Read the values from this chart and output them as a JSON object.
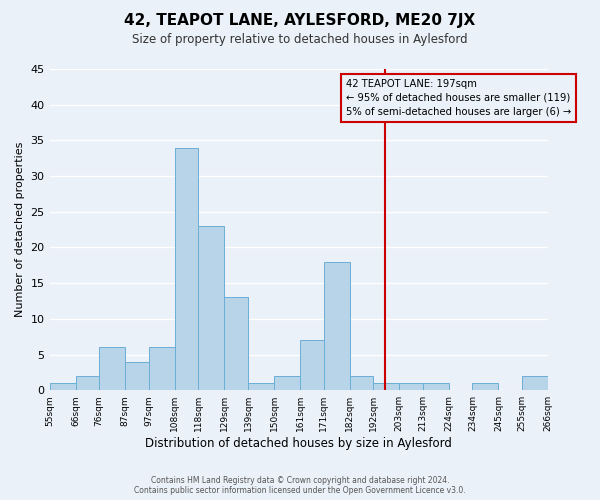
{
  "title": "42, TEAPOT LANE, AYLESFORD, ME20 7JX",
  "subtitle": "Size of property relative to detached houses in Aylesford",
  "xlabel": "Distribution of detached houses by size in Aylesford",
  "ylabel": "Number of detached properties",
  "footer_line1": "Contains HM Land Registry data © Crown copyright and database right 2024.",
  "footer_line2": "Contains public sector information licensed under the Open Government Licence v3.0.",
  "bin_labels": [
    "55sqm",
    "66sqm",
    "76sqm",
    "87sqm",
    "97sqm",
    "108sqm",
    "118sqm",
    "129sqm",
    "139sqm",
    "150sqm",
    "161sqm",
    "171sqm",
    "182sqm",
    "192sqm",
    "203sqm",
    "213sqm",
    "224sqm",
    "234sqm",
    "245sqm",
    "255sqm",
    "266sqm"
  ],
  "bin_edges": [
    55,
    66,
    76,
    87,
    97,
    108,
    118,
    129,
    139,
    150,
    161,
    171,
    182,
    192,
    203,
    213,
    224,
    234,
    245,
    255,
    266
  ],
  "bar_heights": [
    1,
    2,
    6,
    4,
    6,
    34,
    23,
    13,
    1,
    2,
    7,
    18,
    2,
    1,
    1,
    1,
    0,
    1,
    0,
    2
  ],
  "bar_color": "#b8d4e8",
  "bar_edge_color": "#6aaed6",
  "vline_x": 197,
  "vline_color": "#cc0000",
  "annotation_title": "42 TEAPOT LANE: 197sqm",
  "annotation_line1": "← 95% of detached houses are smaller (119)",
  "annotation_line2": "5% of semi-detached houses are larger (6) →",
  "annotation_box_color": "#cc0000",
  "ylim": [
    0,
    45
  ],
  "yticks": [
    0,
    5,
    10,
    15,
    20,
    25,
    30,
    35,
    40,
    45
  ],
  "bg_color": "#eaf1f8",
  "grid_color": "#ffffff"
}
